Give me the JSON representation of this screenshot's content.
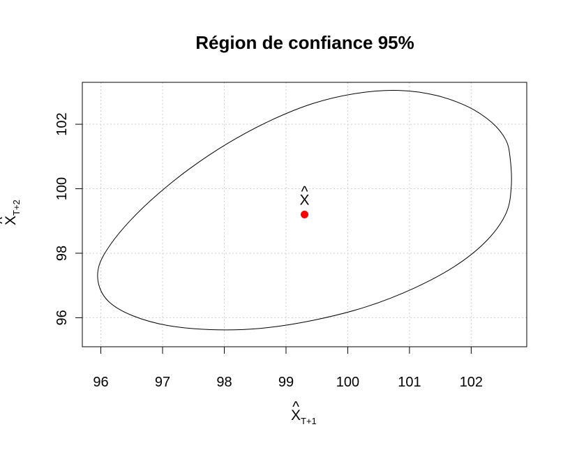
{
  "chart_data": {
    "type": "scatter",
    "title": "Région de confiance 95%",
    "xlabel": {
      "base": "X",
      "hat": "^",
      "sub": "T+1"
    },
    "ylabel": {
      "base": "X",
      "hat": "^",
      "sub": "T+2"
    },
    "xlim": [
      95.7,
      102.9
    ],
    "ylim": [
      95.1,
      103.3
    ],
    "x_ticks": [
      96,
      97,
      98,
      99,
      100,
      101,
      102
    ],
    "y_ticks": [
      96,
      98,
      100,
      102
    ],
    "grid": true,
    "point": {
      "x": 99.3,
      "y": 99.2,
      "color": "#ff0000"
    },
    "point_label": {
      "base": "X",
      "hat": "^"
    },
    "ellipse_outline": [
      [
        102.63,
        100.97
      ],
      [
        102.56,
        101.52
      ],
      [
        102.33,
        102.06
      ],
      [
        101.95,
        102.54
      ],
      [
        101.44,
        102.89
      ],
      [
        100.83,
        103.05
      ],
      [
        100.15,
        102.96
      ],
      [
        99.43,
        102.64
      ],
      [
        98.72,
        102.09
      ],
      [
        98.04,
        101.39
      ],
      [
        97.43,
        100.61
      ],
      [
        96.91,
        99.81
      ],
      [
        96.48,
        99.02
      ],
      [
        96.16,
        98.28
      ],
      [
        95.97,
        97.61
      ],
      [
        95.97,
        97.0
      ],
      [
        96.14,
        96.48
      ],
      [
        96.52,
        96.06
      ],
      [
        97.08,
        95.76
      ],
      [
        97.78,
        95.63
      ],
      [
        98.58,
        95.67
      ],
      [
        99.44,
        95.92
      ],
      [
        100.3,
        96.34
      ],
      [
        101.09,
        96.93
      ],
      [
        101.77,
        97.64
      ],
      [
        102.27,
        98.43
      ],
      [
        102.57,
        99.26
      ],
      [
        102.65,
        100.1
      ]
    ]
  }
}
